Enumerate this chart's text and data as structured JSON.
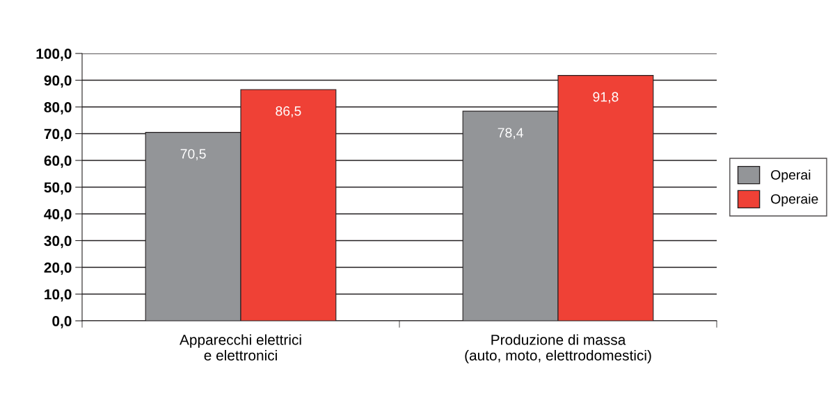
{
  "chart_data": {
    "type": "bar",
    "categories": [
      "Apparecchi elettrici\ne elettronici",
      "Produzione di massa\n(auto, moto, elettrodomestici)"
    ],
    "series": [
      {
        "name": "Operai",
        "color": "#939598",
        "values": [
          70.5,
          78.4
        ],
        "value_labels": [
          "70,5",
          "78,4"
        ]
      },
      {
        "name": "Operaie",
        "color": "#ef4136",
        "values": [
          86.5,
          91.8
        ],
        "value_labels": [
          "86,5",
          "91,8"
        ]
      }
    ],
    "ylim": [
      0,
      100
    ],
    "yticks": [
      {
        "value": 0,
        "label": "0,0"
      },
      {
        "value": 10,
        "label": "10,0"
      },
      {
        "value": 20,
        "label": "20,0"
      },
      {
        "value": 30,
        "label": "30,0"
      },
      {
        "value": 40,
        "label": "40,0"
      },
      {
        "value": 50,
        "label": "50,0"
      },
      {
        "value": 60,
        "label": "60,0"
      },
      {
        "value": 70,
        "label": "70,0"
      },
      {
        "value": 80,
        "label": "80,0"
      },
      {
        "value": 90,
        "label": "90,0"
      },
      {
        "value": 100,
        "label": "100,0"
      }
    ],
    "grid": "y",
    "legend": "right"
  }
}
